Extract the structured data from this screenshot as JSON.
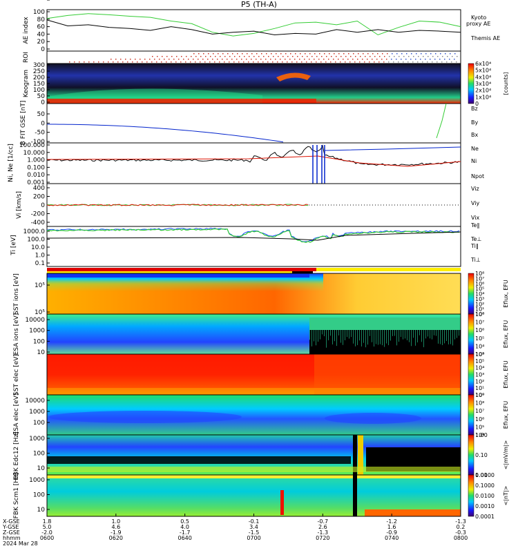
{
  "title": "P5 (TH-A)",
  "date": "2024 Mar 28",
  "colors": {
    "kyoto": "#33cc33",
    "themis": "#000000",
    "red": "#dd1100",
    "green": "#33cc33",
    "blue": "#0022cc"
  },
  "chart_data": [
    {
      "type": "line",
      "panel": "ae",
      "ylabel": "AE index",
      "ylim": [
        0,
        100
      ],
      "yticks": [
        "100",
        "80",
        "60",
        "40",
        "20",
        "0"
      ],
      "legend": [
        "Kyoto",
        "proxy AE",
        "Themis AE"
      ],
      "series": [
        {
          "name": "Kyoto proxy AE",
          "x": [
            0,
            0.05,
            0.1,
            0.15,
            0.2,
            0.25,
            0.3,
            0.35,
            0.4,
            0.45,
            0.5,
            0.55,
            0.6,
            0.65,
            0.7,
            0.75,
            0.8,
            0.85,
            0.9,
            0.95,
            1.0
          ],
          "values": [
            82,
            90,
            95,
            92,
            88,
            85,
            75,
            68,
            45,
            35,
            42,
            55,
            70,
            72,
            65,
            75,
            38,
            58,
            75,
            72,
            60
          ]
        },
        {
          "name": "Themis AE",
          "x": [
            0,
            0.05,
            0.1,
            0.15,
            0.2,
            0.25,
            0.3,
            0.35,
            0.4,
            0.45,
            0.5,
            0.55,
            0.6,
            0.65,
            0.7,
            0.75,
            0.8,
            0.85,
            0.9,
            0.95,
            1.0
          ],
          "values": [
            78,
            62,
            65,
            58,
            55,
            50,
            60,
            52,
            40,
            45,
            48,
            38,
            42,
            40,
            52,
            45,
            52,
            45,
            50,
            48,
            45
          ]
        }
      ]
    },
    {
      "type": "scatter",
      "panel": "roi",
      "ylabel": "ROI"
    },
    {
      "type": "heatmap",
      "panel": "keogram",
      "ylabel": "Keogram",
      "yticks": [
        "300",
        "250",
        "200",
        "150",
        "100",
        "50",
        "0"
      ],
      "cbar_ticks": [
        "6x10⁴",
        "5x10⁴",
        "4x10⁴",
        "3x10⁴",
        "2x10⁴",
        "1x10⁴",
        "0"
      ],
      "cbar_label": "[counts]"
    },
    {
      "type": "line",
      "panel": "bfield",
      "ylabel": "B FIT GSE [nT]",
      "yticks": [
        "50",
        "0",
        "-50",
        "-100"
      ],
      "legend": [
        "Bz",
        "By",
        "Bx"
      ]
    },
    {
      "type": "line",
      "panel": "density",
      "ylabel": "Ni, Ne [1/cc]",
      "yticks": [
        "100.000",
        "10.000",
        "1.000",
        "0.100",
        "0.010",
        "0.001"
      ],
      "legend": [
        "Ne",
        "Ni",
        "Npot"
      ]
    },
    {
      "type": "line",
      "panel": "velocity",
      "ylabel": "Vi [km/s]",
      "yticks": [
        "400",
        "200",
        "0",
        "-200",
        "-400"
      ],
      "legend": [
        "Viz",
        "Viy",
        "Vix"
      ]
    },
    {
      "type": "line",
      "panel": "temperature",
      "ylabel": "Ti [eV]",
      "yticks": [
        "1000.0",
        "100.0",
        "10.0",
        "1.0",
        "0.1"
      ],
      "legend": [
        "Te‖",
        "Te⊥",
        "Ti‖",
        "Ti⊥"
      ]
    },
    {
      "type": "heatmap",
      "panel": "sst_ion",
      "ylabel": "SST ions [eV]",
      "yticks": [
        "10⁵",
        "10⁵"
      ],
      "cbar_ticks": [
        "10⁸",
        "10⁷",
        "10⁶",
        "10⁵",
        "10⁴",
        "10³",
        "10²",
        "10¹",
        "10⁰"
      ],
      "cbar_label": "Eflux, EFU"
    },
    {
      "type": "heatmap",
      "panel": "esa_ion",
      "ylabel": "ESA ions [eV]",
      "yticks": [
        "10000",
        "1000",
        "100",
        "10"
      ],
      "cbar_ticks": [
        "10⁸",
        "10⁷",
        "10⁶",
        "10⁵",
        "10⁴",
        "10³"
      ],
      "cbar_label": "Eflux, EFU"
    },
    {
      "type": "heatmap",
      "panel": "sst_elec",
      "ylabel": "SST elec [eV]",
      "yticks": [
        "10⁵"
      ],
      "cbar_ticks": [
        "10⁶",
        "10⁵",
        "10⁴",
        "10³",
        "10²",
        "10¹",
        "10⁰"
      ],
      "cbar_label": "Eflux, EFU"
    },
    {
      "type": "heatmap",
      "panel": "esa_elec",
      "ylabel": "ESA elec [eV]",
      "yticks": [
        "10000",
        "1000",
        "100"
      ],
      "cbar_ticks": [
        "10⁹",
        "10⁸",
        "10⁷",
        "10⁶",
        "10⁵",
        "10⁴"
      ],
      "cbar_label": "Eflux, EFU"
    },
    {
      "type": "heatmap",
      "panel": "fbk_e",
      "ylabel": "FBK Edc12 [Hz]",
      "yticks": [
        "1000",
        "100",
        "10"
      ],
      "cbar_ticks": [
        "1.00",
        "0.10",
        "0.01"
      ],
      "cbar_label": "<|mV/m|>"
    },
    {
      "type": "heatmap",
      "panel": "fbk_b",
      "ylabel": "FBK Scm1 [Hz]",
      "yticks": [
        "1000",
        "100",
        "10"
      ],
      "cbar_ticks": [
        "1.0000",
        "0.1000",
        "0.0100",
        "0.0010",
        "0.0001"
      ],
      "cbar_label": "<|nT|>"
    }
  ],
  "xaxis": {
    "row_labels": [
      "X-GSE",
      "Y-GSE",
      "Z-GSE",
      "hhmm"
    ],
    "columns": [
      {
        "values": [
          "1.8",
          "5.0",
          "-2.0",
          "0600"
        ]
      },
      {
        "values": [
          "1.0",
          "4.6",
          "-1.9",
          "0620"
        ]
      },
      {
        "values": [
          "0.5",
          "4.0",
          "-1.7",
          "0640"
        ]
      },
      {
        "values": [
          "-0.1",
          "3.4",
          "-1.5",
          "0700"
        ]
      },
      {
        "values": [
          "-0.7",
          "2.6",
          "-1.3",
          "0720"
        ]
      },
      {
        "values": [
          "-1.2",
          "1.6",
          "-0.9",
          "0740"
        ]
      },
      {
        "values": [
          "-1.3",
          "0.2",
          "-0.3",
          "0800"
        ]
      }
    ]
  }
}
